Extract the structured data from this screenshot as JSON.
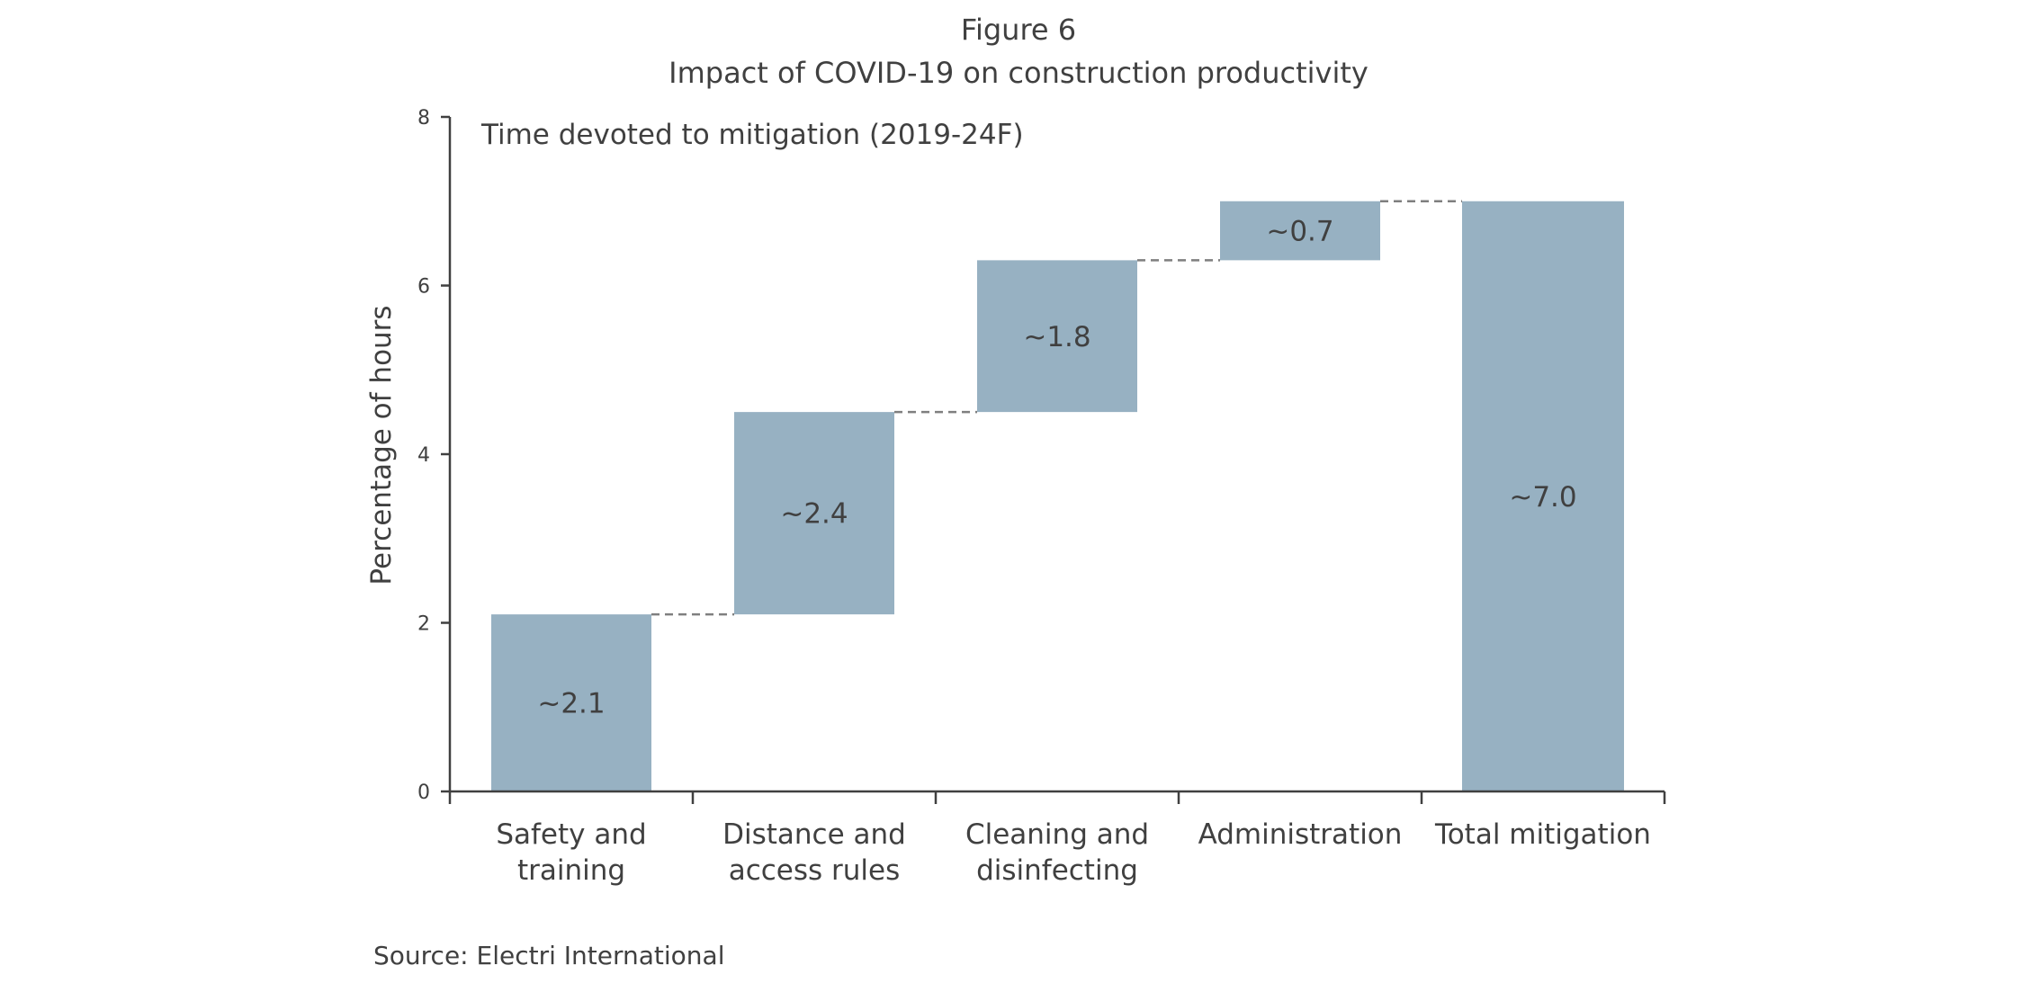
{
  "figure": {
    "label": "Figure 6",
    "title": "Impact of COVID-19 on construction productivity",
    "source": "Source: Electri International"
  },
  "chart_data": {
    "type": "bar",
    "subtype": "waterfall",
    "title": "Impact of COVID-19 on construction productivity",
    "subtitle": "Time devoted to mitigation (2019-24F)",
    "xlabel": "",
    "ylabel": "Percentage of hours",
    "ylim": [
      0,
      8
    ],
    "yticks": [
      0,
      2,
      4,
      6,
      8
    ],
    "grid": false,
    "categories": [
      [
        "Safety and",
        "training"
      ],
      [
        "Distance and",
        "access rules"
      ],
      [
        "Cleaning and",
        "disinfecting"
      ],
      [
        "Administration"
      ],
      [
        "Total mitigation"
      ]
    ],
    "bars": [
      {
        "start": 0,
        "end": 2.1,
        "label": "~2.1"
      },
      {
        "start": 2.1,
        "end": 4.5,
        "label": "~2.4"
      },
      {
        "start": 4.5,
        "end": 6.3,
        "label": "~1.8"
      },
      {
        "start": 6.3,
        "end": 7.0,
        "label": "~0.7"
      },
      {
        "start": 0,
        "end": 7.0,
        "label": "~7.0"
      }
    ],
    "bar_color": "#97b1c2",
    "connector_color": "#7f7f7f",
    "axis_color": "#404040"
  }
}
